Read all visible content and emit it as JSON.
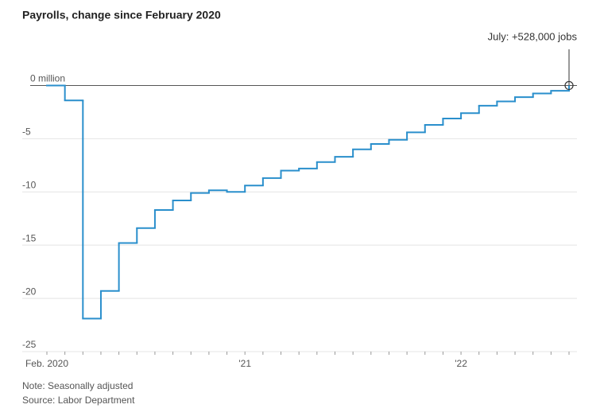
{
  "chart_data": {
    "type": "step",
    "title": "Payrolls, change since February 2020",
    "categories": [
      "Feb. 2020",
      null,
      null,
      null,
      null,
      null,
      null,
      null,
      null,
      null,
      null,
      "'21",
      null,
      null,
      null,
      null,
      null,
      null,
      null,
      null,
      null,
      null,
      null,
      "'22",
      null,
      null,
      null,
      null,
      null,
      null
    ],
    "series": [
      {
        "name": "Payrolls",
        "color": "#2a8fcc",
        "values": [
          0,
          -1.4,
          -21.9,
          -19.3,
          -14.8,
          -13.4,
          -11.7,
          -10.8,
          -10.1,
          -9.85,
          -10.0,
          -9.4,
          -8.7,
          -8.0,
          -7.8,
          -7.2,
          -6.7,
          -6.0,
          -5.5,
          -5.1,
          -4.4,
          -3.7,
          -3.1,
          -2.6,
          -1.9,
          -1.5,
          -1.1,
          -0.75,
          -0.5,
          0
        ]
      }
    ],
    "ylim": [
      -25,
      2.5
    ],
    "yticks": [
      {
        "value": 0,
        "label": "0 million"
      },
      -5,
      -10,
      -15,
      -20,
      -25
    ],
    "annotation": "July: +528,000 jobs",
    "note": "Note: Seasonally adjusted",
    "source": "Source: Labor Department",
    "grid": true
  }
}
